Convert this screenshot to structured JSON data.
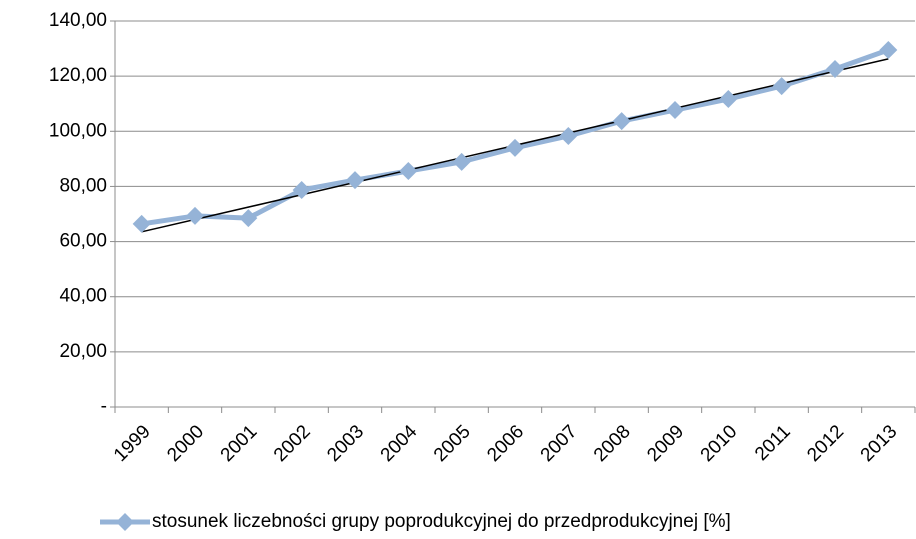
{
  "chart_data": {
    "type": "line",
    "categories": [
      "1999",
      "2000",
      "2001",
      "2002",
      "2003",
      "2004",
      "2005",
      "2006",
      "2007",
      "2008",
      "2009",
      "2010",
      "2011",
      "2012",
      "2013"
    ],
    "series": [
      {
        "name": "stosunek liczebności grupy poprodukcyjnej do przedprodukcyjnej [%]",
        "color": "#95b3d7",
        "values": [
          66.4,
          69.3,
          68.5,
          78.7,
          82.3,
          85.6,
          88.9,
          94.0,
          98.3,
          103.7,
          107.7,
          111.7,
          116.4,
          122.6,
          129.5
        ]
      }
    ],
    "trendline": true,
    "ylim": [
      0,
      140
    ],
    "yticks": [
      {
        "value": 0,
        "label": "-"
      },
      {
        "value": 20,
        "label": "20,00"
      },
      {
        "value": 40,
        "label": "40,00"
      },
      {
        "value": 60,
        "label": "60,00"
      },
      {
        "value": 80,
        "label": "80,00"
      },
      {
        "value": 100,
        "label": "100,00"
      },
      {
        "value": 120,
        "label": "120,00"
      },
      {
        "value": 140,
        "label": "140,00"
      }
    ],
    "grid": true,
    "legend": "bottom"
  }
}
